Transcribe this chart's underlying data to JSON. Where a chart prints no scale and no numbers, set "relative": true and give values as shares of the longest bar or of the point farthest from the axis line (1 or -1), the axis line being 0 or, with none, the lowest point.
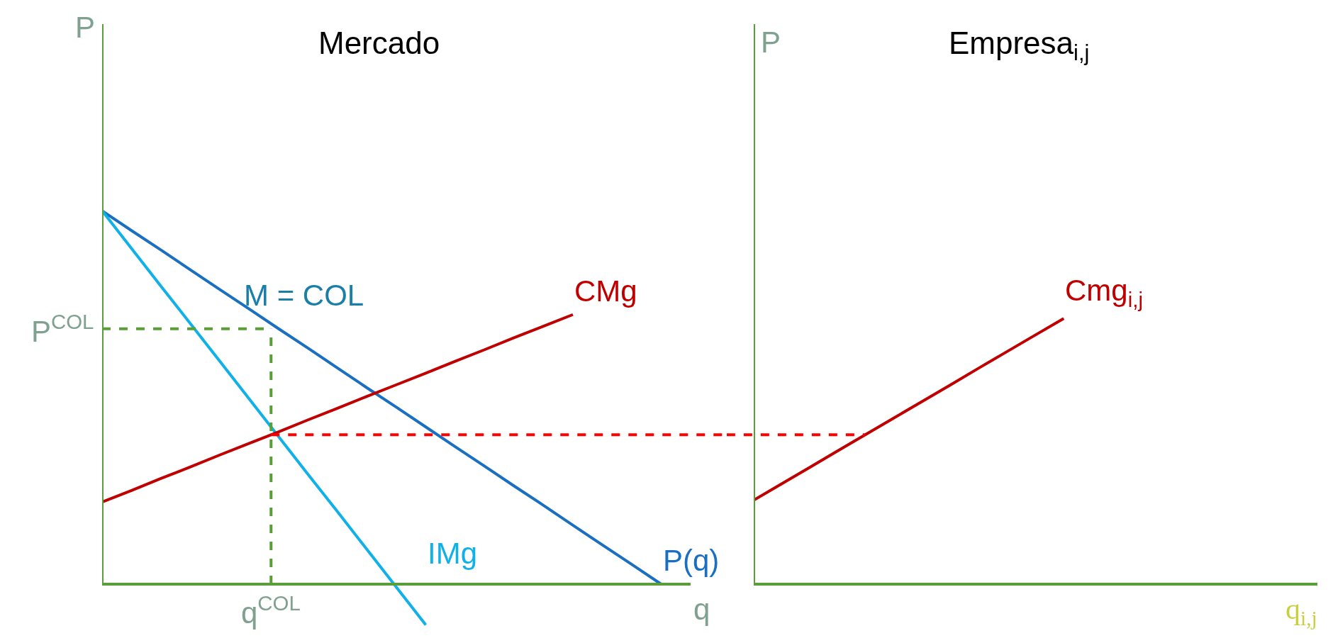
{
  "chart_data": [
    {
      "type": "line",
      "relative": true,
      "title": "Mercado",
      "xlabel": "q",
      "ylabel": "P",
      "categories": [
        null,
        null,
        null,
        null,
        null,
        null,
        null,
        null,
        null,
        null,
        null,
        null,
        null,
        null,
        null,
        null,
        null,
        null,
        null,
        null,
        null
      ],
      "tick_labels": false,
      "grid": false,
      "legend": false,
      "marker": "none",
      "line_style": "solid",
      "series": [
        {
          "name": "P(q)",
          "color": "#1a6fc0",
          "values": [
            1,
            0.947,
            0.895,
            0.842,
            0.789,
            0.737,
            0.684,
            0.632,
            0.579,
            0.526,
            0.474,
            0.421,
            0.368,
            0.316,
            0.263,
            0.211,
            0.158,
            0.105,
            0.053,
            0,
            null
          ]
        },
        {
          "name": "IMg",
          "color": "#10b0e8",
          "values": [
            1,
            0.899,
            0.798,
            0.698,
            0.597,
            0.496,
            0.395,
            0.294,
            0.194,
            0.093,
            -0.008,
            -0.109,
            null,
            null,
            null,
            null,
            null,
            null,
            null,
            null,
            null
          ]
        },
        {
          "name": "CMg",
          "color": "#c00000",
          "values": [
            0.22,
            0.251,
            0.283,
            0.314,
            0.346,
            0.377,
            0.408,
            0.44,
            0.471,
            0.503,
            0.534,
            0.565,
            0.597,
            0.628,
            0.66,
            0.691,
            0.722,
            null,
            null,
            null,
            null
          ]
        }
      ],
      "ref_lines": [
        {
          "axis": "y",
          "value": 0,
          "color": "#5a9e3a",
          "line_style": "solid"
        },
        {
          "axis": "y",
          "value": 0.684,
          "label": "P$^{COL}$",
          "color": "#5a9e3a",
          "line_style": "dashed"
        },
        {
          "axis": "y",
          "value": 0.4,
          "color": "#ff0000",
          "line_style": "dashed"
        }
      ],
      "annotations": [
        "M = COL",
        "q$^{COL}$"
      ]
    },
    {
      "type": "line",
      "relative": true,
      "title": "Empresa$_{i,j}$",
      "xlabel": "q$_{i,j}$",
      "ylabel": "P",
      "categories": [
        null,
        null,
        null,
        null,
        null,
        null,
        null,
        null,
        null,
        null,
        null,
        null,
        null,
        null,
        null,
        null,
        null,
        null,
        null,
        null,
        null
      ],
      "tick_labels": false,
      "grid": false,
      "legend": false,
      "marker": "none",
      "line_style": "solid",
      "series": [
        {
          "name": "Cmg$_{i,j}$",
          "color": "#c00000",
          "values": [
            0.316,
            0.378,
            0.44,
            0.503,
            0.565,
            0.627,
            0.689,
            0.751,
            0.814,
            0.876,
            0.938,
            1,
            null,
            null,
            null,
            null,
            null,
            null,
            null,
            null,
            null
          ]
        }
      ],
      "ref_lines": [
        {
          "axis": "y",
          "value": 0.562,
          "color": "#ff0000",
          "line_style": "dashed"
        }
      ]
    }
  ]
}
